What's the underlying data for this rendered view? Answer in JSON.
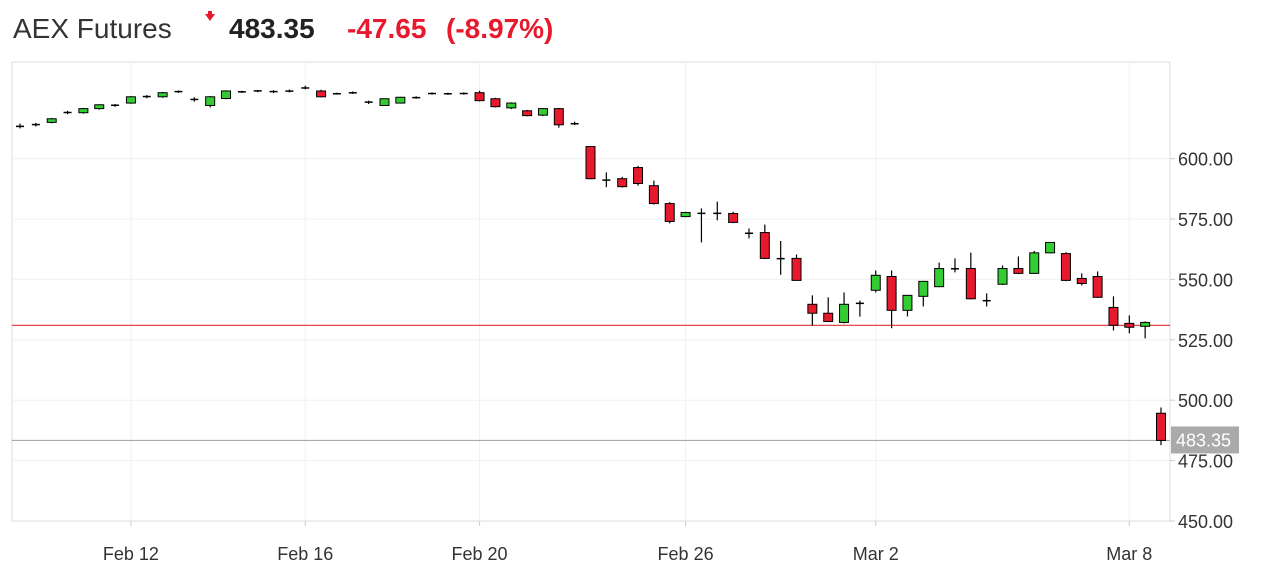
{
  "chart_data": {
    "type": "candlestick",
    "title": "AEX Futures",
    "last_price": 483.35,
    "change": "-47.65",
    "change_percent": "(-8.97%)",
    "previous_close": 531.0,
    "up_color": "#33cc33",
    "down_color": "#e8192c",
    "grid": true,
    "ylim": [
      450,
      640
    ],
    "yticks": [
      {
        "value": 450,
        "label": "450.00"
      },
      {
        "value": 475,
        "label": "475.00"
      },
      {
        "value": 500,
        "label": "500.00"
      },
      {
        "value": 525,
        "label": "525.00"
      },
      {
        "value": 550,
        "label": "550.00"
      },
      {
        "value": 575,
        "label": "575.00"
      },
      {
        "value": 600,
        "label": "600.00"
      }
    ],
    "categories": [
      null,
      null,
      null,
      null,
      null,
      null,
      null,
      "Feb 12",
      null,
      null,
      null,
      null,
      null,
      null,
      null,
      null,
      null,
      null,
      "Feb 16",
      null,
      null,
      null,
      null,
      null,
      null,
      null,
      null,
      null,
      null,
      "Feb 20",
      null,
      null,
      null,
      null,
      null,
      null,
      null,
      null,
      null,
      null,
      null,
      null,
      "Feb 26",
      null,
      null,
      null,
      null,
      null,
      null,
      null,
      null,
      null,
      null,
      null,
      "Mar 2",
      null,
      null,
      null,
      null,
      null,
      null,
      null,
      null,
      null,
      null,
      null,
      null,
      null,
      null,
      null,
      "Mar 8",
      null,
      null
    ],
    "open": [
      613.2,
      614,
      615,
      619,
      619,
      620.7,
      622,
      623,
      625.6,
      625.6,
      627.7,
      624.6,
      622,
      624.9,
      627.7,
      628,
      627.7,
      628,
      629.3,
      628,
      626.9,
      627.3,
      623.5,
      622,
      623,
      625.2,
      626.9,
      626.9,
      626.9,
      627.3,
      624.8,
      621,
      619.8,
      618,
      620.7,
      614.5,
      605,
      591.2,
      591.7,
      596.3,
      588.8,
      581.4,
      576,
      577.5,
      577.3,
      577.3,
      569.2,
      569.4,
      558.7,
      558.7,
      539.7,
      536,
      532.2,
      540,
      545.5,
      551.2,
      537.2,
      543,
      547,
      554.5,
      554.5,
      541.3,
      548,
      554.5,
      552.5,
      561,
      560.7,
      550.4,
      551.2,
      538.4,
      531.8,
      530.6,
      494.6
    ],
    "high": [
      614.5,
      614.8,
      616.8,
      619.8,
      621,
      622.5,
      622.6,
      625.9,
      626.3,
      627.6,
      628.2,
      625.4,
      625.9,
      628.3,
      628.1,
      628.4,
      628.3,
      628.6,
      630.2,
      628.5,
      627.3,
      627.8,
      624,
      624.9,
      625.6,
      625.8,
      627.4,
      627.3,
      627.4,
      628.1,
      625.2,
      623.3,
      620.2,
      620.9,
      621,
      615.3,
      605.2,
      594.3,
      592.5,
      597,
      590.9,
      582,
      578,
      579.4,
      582.2,
      578,
      571.1,
      572.7,
      565.9,
      560.3,
      543.4,
      542.6,
      544.6,
      541.2,
      553.7,
      553.7,
      543.6,
      549.4,
      557,
      558.7,
      561.1,
      544.2,
      555.8,
      559.5,
      561.8,
      565.5,
      561.3,
      552.5,
      553.3,
      543,
      535.1,
      532.6,
      497
    ],
    "low": [
      612.5,
      613.3,
      614.6,
      618.4,
      618.6,
      620.3,
      621.4,
      622.7,
      625,
      625.2,
      627.2,
      623.6,
      621.2,
      624.6,
      627.2,
      627.5,
      627.1,
      627.4,
      628.7,
      625.3,
      626.5,
      626.8,
      622.6,
      621.8,
      622.8,
      624.8,
      626.5,
      626.4,
      626.5,
      623.7,
      621.2,
      620.5,
      617.5,
      617.6,
      612.8,
      613.9,
      591.5,
      588.2,
      588,
      588.8,
      581,
      573.2,
      575.8,
      565.3,
      574.5,
      573.3,
      567,
      558.4,
      551.9,
      549.4,
      530.9,
      532.4,
      531.8,
      534.6,
      544.6,
      529.8,
      534.7,
      538.8,
      546.8,
      552.9,
      541.7,
      538.8,
      547.7,
      552.2,
      552.3,
      560.8,
      549.3,
      547.5,
      542.3,
      528.9,
      527.7,
      525.6,
      481.4
    ],
    "close": [
      613.5,
      614.2,
      616.5,
      619.2,
      620.7,
      622.3,
      622.2,
      625.6,
      625.8,
      627.3,
      627.8,
      624.4,
      625.6,
      628,
      627.6,
      628.1,
      627.8,
      627.9,
      629.2,
      625.6,
      626.8,
      627.2,
      623.3,
      624.8,
      625.4,
      625.3,
      627,
      626.8,
      627,
      624,
      621.5,
      623,
      617.8,
      620.7,
      614,
      614.4,
      591.7,
      591,
      588.4,
      589.7,
      581.4,
      574,
      577.7,
      577.2,
      577.4,
      573.6,
      569,
      558.7,
      558.5,
      549.6,
      536,
      532.6,
      539.7,
      540.2,
      551.7,
      537.2,
      543.4,
      549.2,
      554.5,
      554.3,
      542,
      541.1,
      554.5,
      552.5,
      561,
      565.3,
      549.6,
      548.3,
      542.6,
      531,
      530.2,
      532.2,
      483.35
    ]
  }
}
